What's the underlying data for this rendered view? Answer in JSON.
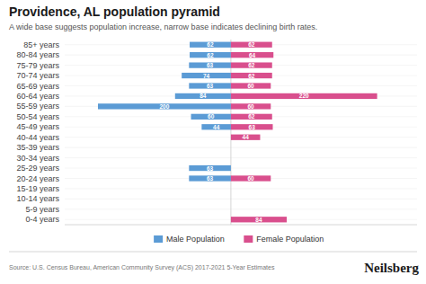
{
  "chart_data": {
    "type": "pyramid",
    "orientation": "horizontal",
    "title": "Providence, AL population pyramid",
    "subtitle": "A wide base suggests population increase, narrow base indicates declining birth rates.",
    "annotations": [
      "Source: U.S. Census Bureau, American Community Survey (ACS) 2017-2021 5-Year Estimates",
      "Neilsberg"
    ],
    "categories": [
      "0-4 years",
      "5-9 years",
      "10-14 years",
      "15-19 years",
      "20-24 years",
      "25-29 years",
      "30-34 years",
      "35-39 years",
      "40-44 years",
      "45-49 years",
      "50-54 years",
      "55-59 years",
      "60-64 years",
      "65-69 years",
      "70-74 years",
      "75-79 years",
      "80-84 years",
      "85+ years"
    ],
    "series": [
      {
        "name": "Male Population",
        "color": "#5b9bd5",
        "values": [
          0,
          0,
          0,
          0,
          63,
          63,
          0,
          0,
          0,
          44,
          60,
          200,
          84,
          63,
          74,
          63,
          62,
          62
        ]
      },
      {
        "name": "Female Population",
        "color": "#d94f8d",
        "values": [
          84,
          0,
          0,
          0,
          60,
          0,
          0,
          0,
          44,
          63,
          62,
          60,
          220,
          60,
          62,
          62,
          64,
          62
        ]
      }
    ],
    "xlim": [
      -250,
      280
    ],
    "xticks": [],
    "tick_labels": "y",
    "grid": true,
    "legend": "bottom",
    "data_labels": true
  }
}
